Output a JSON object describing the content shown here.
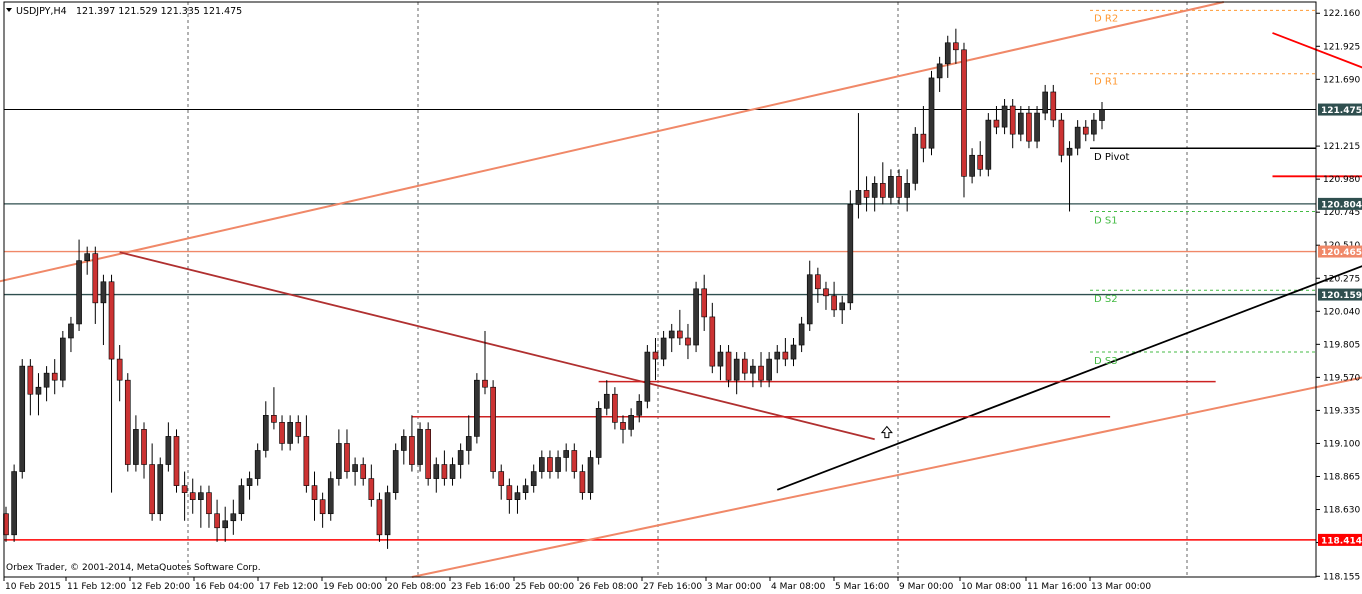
{
  "header": {
    "symbol": "USDJPY,H4",
    "ohlc": "121.397 121.529 121.335 121.475"
  },
  "footer": {
    "copyright": "Orbex Trader, © 2001-2014, MetaQuotes Software Corp."
  },
  "colors": {
    "bull": "#333333",
    "bear": "#cc3333",
    "support": "#ff0000",
    "dark_level": "#2f4f4f",
    "salmon": "#f08868",
    "resistance_pivot": "#ff9933",
    "support_pivot": "#44bb44"
  },
  "chart_data": {
    "type": "candlestick",
    "ylim": [
      118.15,
      122.24
    ],
    "x_tick_labels": [
      "10 Feb 2015",
      "11 Feb 12:00",
      "12 Feb 20:00",
      "16 Feb 04:00",
      "17 Feb 12:00",
      "19 Feb 00:00",
      "20 Feb 08:00",
      "23 Feb 16:00",
      "25 Feb 00:00",
      "26 Feb 08:00",
      "27 Feb 16:00",
      "3 Mar 00:00",
      "4 Mar 08:00",
      "5 Mar 16:00",
      "9 Mar 00:00",
      "10 Mar 08:00",
      "11 Mar 16:00",
      "13 Mar 00:00"
    ],
    "y_ticks": [
      "122.160",
      "121.925",
      "121.690",
      "121.215",
      "120.980",
      "120.745",
      "120.510",
      "120.275",
      "120.040",
      "119.805",
      "119.570",
      "119.335",
      "119.100",
      "118.865",
      "118.630",
      "118.395",
      "118.155"
    ],
    "price_tags": [
      {
        "value": "121.475",
        "style": "dark"
      },
      {
        "value": "120.804",
        "style": "dark"
      },
      {
        "value": "120.465",
        "style": "salmon"
      },
      {
        "value": "120.159",
        "style": "dark"
      },
      {
        "value": "118.414",
        "style": "red"
      }
    ],
    "pivot_levels": [
      {
        "label": "D R2",
        "value": 122.18,
        "kind": "resistance"
      },
      {
        "label": "D R1",
        "value": 121.73,
        "kind": "resistance"
      },
      {
        "label": "D Pivot",
        "value": 121.2,
        "kind": "pivot"
      },
      {
        "label": "D S1",
        "value": 120.75,
        "kind": "support"
      },
      {
        "label": "D S2",
        "value": 120.19,
        "kind": "support"
      },
      {
        "label": "D S3",
        "value": 119.75,
        "kind": "support"
      }
    ],
    "candles": [
      [
        118.6,
        118.65,
        118.4,
        118.45
      ],
      [
        118.45,
        118.95,
        118.4,
        118.9
      ],
      [
        118.9,
        119.7,
        118.85,
        119.65
      ],
      [
        119.65,
        119.7,
        119.3,
        119.45
      ],
      [
        119.45,
        119.6,
        119.3,
        119.5
      ],
      [
        119.5,
        119.65,
        119.4,
        119.6
      ],
      [
        119.6,
        119.7,
        119.45,
        119.55
      ],
      [
        119.55,
        119.9,
        119.5,
        119.85
      ],
      [
        119.85,
        120.0,
        119.75,
        119.95
      ],
      [
        119.95,
        120.55,
        119.9,
        120.4
      ],
      [
        120.4,
        120.5,
        120.3,
        120.45
      ],
      [
        120.45,
        120.5,
        119.95,
        120.1
      ],
      [
        120.1,
        120.3,
        119.8,
        120.25
      ],
      [
        120.25,
        120.3,
        118.75,
        119.7
      ],
      [
        119.7,
        119.8,
        119.4,
        119.55
      ],
      [
        119.55,
        119.6,
        118.9,
        118.95
      ],
      [
        118.95,
        119.3,
        118.9,
        119.2
      ],
      [
        119.2,
        119.25,
        118.85,
        118.95
      ],
      [
        118.95,
        119.1,
        118.55,
        118.6
      ],
      [
        118.6,
        119.0,
        118.55,
        118.95
      ],
      [
        118.95,
        119.25,
        118.9,
        119.15
      ],
      [
        119.15,
        119.2,
        118.75,
        118.8
      ],
      [
        118.8,
        118.9,
        118.55,
        118.75
      ],
      [
        118.75,
        118.85,
        118.6,
        118.7
      ],
      [
        118.7,
        118.8,
        118.5,
        118.75
      ],
      [
        118.75,
        118.8,
        118.5,
        118.6
      ],
      [
        118.6,
        118.7,
        118.4,
        118.5
      ],
      [
        118.5,
        118.65,
        118.4,
        118.55
      ],
      [
        118.55,
        118.7,
        118.45,
        118.6
      ],
      [
        118.6,
        118.85,
        118.55,
        118.8
      ],
      [
        118.8,
        118.9,
        118.7,
        118.85
      ],
      [
        118.85,
        119.1,
        118.8,
        119.05
      ],
      [
        119.05,
        119.4,
        119.0,
        119.3
      ],
      [
        119.3,
        119.5,
        119.2,
        119.25
      ],
      [
        119.25,
        119.3,
        119.05,
        119.1
      ],
      [
        119.1,
        119.3,
        119.05,
        119.25
      ],
      [
        119.25,
        119.3,
        119.1,
        119.15
      ],
      [
        119.15,
        119.3,
        118.75,
        118.8
      ],
      [
        118.8,
        118.9,
        118.55,
        118.7
      ],
      [
        118.7,
        118.75,
        118.5,
        118.6
      ],
      [
        118.6,
        118.9,
        118.55,
        118.85
      ],
      [
        118.85,
        119.2,
        118.8,
        119.1
      ],
      [
        119.1,
        119.2,
        118.85,
        118.9
      ],
      [
        118.9,
        119.0,
        118.8,
        118.95
      ],
      [
        118.95,
        119.0,
        118.8,
        118.85
      ],
      [
        118.85,
        118.95,
        118.65,
        118.7
      ],
      [
        118.7,
        118.75,
        118.4,
        118.45
      ],
      [
        118.45,
        118.8,
        118.35,
        118.75
      ],
      [
        118.75,
        119.1,
        118.7,
        119.05
      ],
      [
        119.05,
        119.2,
        118.95,
        119.15
      ],
      [
        119.15,
        119.3,
        118.9,
        118.95
      ],
      [
        118.95,
        119.25,
        118.9,
        119.2
      ],
      [
        119.2,
        119.25,
        118.8,
        118.85
      ],
      [
        118.85,
        119.0,
        118.75,
        118.95
      ],
      [
        118.95,
        119.05,
        118.8,
        118.85
      ],
      [
        118.85,
        119.0,
        118.8,
        118.95
      ],
      [
        118.95,
        119.1,
        118.85,
        119.05
      ],
      [
        119.05,
        119.3,
        118.95,
        119.15
      ],
      [
        119.15,
        119.6,
        119.1,
        119.55
      ],
      [
        119.55,
        119.9,
        119.45,
        119.5
      ],
      [
        119.5,
        119.55,
        118.85,
        118.9
      ],
      [
        118.9,
        118.95,
        118.7,
        118.8
      ],
      [
        118.8,
        118.85,
        118.6,
        118.7
      ],
      [
        118.7,
        118.8,
        118.6,
        118.75
      ],
      [
        118.75,
        118.85,
        118.7,
        118.8
      ],
      [
        118.8,
        118.95,
        118.75,
        118.9
      ],
      [
        118.9,
        119.05,
        118.85,
        119.0
      ],
      [
        119.0,
        119.05,
        118.85,
        118.9
      ],
      [
        118.9,
        119.05,
        118.85,
        119.0
      ],
      [
        119.0,
        119.1,
        118.9,
        119.05
      ],
      [
        119.05,
        119.1,
        118.85,
        118.9
      ],
      [
        118.9,
        118.95,
        118.7,
        118.75
      ],
      [
        118.75,
        119.05,
        118.7,
        119.0
      ],
      [
        119.0,
        119.4,
        118.95,
        119.35
      ],
      [
        119.35,
        119.55,
        119.3,
        119.45
      ],
      [
        119.45,
        119.5,
        119.2,
        119.25
      ],
      [
        119.25,
        119.3,
        119.1,
        119.2
      ],
      [
        119.2,
        119.35,
        119.15,
        119.3
      ],
      [
        119.3,
        119.45,
        119.25,
        119.4
      ],
      [
        119.4,
        119.8,
        119.35,
        119.75
      ],
      [
        119.75,
        119.85,
        119.55,
        119.7
      ],
      [
        119.7,
        119.9,
        119.65,
        119.85
      ],
      [
        119.85,
        119.95,
        119.75,
        119.9
      ],
      [
        119.9,
        120.05,
        119.8,
        119.85
      ],
      [
        119.85,
        119.95,
        119.7,
        119.8
      ],
      [
        119.8,
        120.25,
        119.75,
        120.2
      ],
      [
        120.2,
        120.3,
        119.9,
        120.0
      ],
      [
        120.0,
        120.1,
        119.6,
        119.65
      ],
      [
        119.65,
        119.8,
        119.55,
        119.75
      ],
      [
        119.75,
        119.8,
        119.5,
        119.55
      ],
      [
        119.55,
        119.75,
        119.45,
        119.7
      ],
      [
        119.7,
        119.75,
        119.55,
        119.6
      ],
      [
        119.6,
        119.7,
        119.5,
        119.65
      ],
      [
        119.65,
        119.75,
        119.5,
        119.55
      ],
      [
        119.55,
        119.75,
        119.5,
        119.7
      ],
      [
        119.7,
        119.8,
        119.6,
        119.75
      ],
      [
        119.75,
        119.85,
        119.65,
        119.7
      ],
      [
        119.7,
        119.85,
        119.65,
        119.8
      ],
      [
        119.8,
        120.0,
        119.75,
        119.95
      ],
      [
        119.95,
        120.4,
        119.9,
        120.3
      ],
      [
        120.3,
        120.35,
        120.1,
        120.2
      ],
      [
        120.2,
        120.25,
        120.05,
        120.15
      ],
      [
        120.15,
        120.25,
        120.0,
        120.05
      ],
      [
        120.05,
        120.15,
        119.95,
        120.1
      ],
      [
        120.1,
        120.9,
        120.05,
        120.8
      ],
      [
        120.8,
        121.45,
        120.7,
        120.9
      ],
      [
        120.9,
        121.0,
        120.75,
        120.85
      ],
      [
        120.85,
        121.0,
        120.75,
        120.95
      ],
      [
        120.95,
        121.1,
        120.8,
        120.85
      ],
      [
        120.85,
        121.05,
        120.8,
        121.0
      ],
      [
        121.0,
        121.05,
        120.8,
        120.85
      ],
      [
        120.85,
        121.05,
        120.75,
        120.95
      ],
      [
        120.95,
        121.35,
        120.9,
        121.3
      ],
      [
        121.3,
        121.5,
        121.1,
        121.2
      ],
      [
        121.2,
        121.75,
        121.15,
        121.7
      ],
      [
        121.7,
        121.85,
        121.6,
        121.8
      ],
      [
        121.8,
        122.0,
        121.7,
        121.95
      ],
      [
        121.95,
        122.05,
        121.8,
        121.9
      ],
      [
        121.9,
        121.95,
        120.85,
        121.0
      ],
      [
        121.0,
        121.2,
        120.95,
        121.15
      ],
      [
        121.15,
        121.25,
        121.0,
        121.05
      ],
      [
        121.05,
        121.45,
        121.0,
        121.4
      ],
      [
        121.4,
        121.5,
        121.3,
        121.35
      ],
      [
        121.35,
        121.55,
        121.3,
        121.5
      ],
      [
        121.5,
        121.55,
        121.2,
        121.3
      ],
      [
        121.3,
        121.5,
        121.25,
        121.45
      ],
      [
        121.45,
        121.5,
        121.2,
        121.25
      ],
      [
        121.25,
        121.5,
        121.2,
        121.45
      ],
      [
        121.45,
        121.65,
        121.4,
        121.6
      ],
      [
        121.6,
        121.65,
        121.35,
        121.4
      ],
      [
        121.4,
        121.45,
        121.1,
        121.15
      ],
      [
        121.15,
        121.25,
        120.75,
        121.2
      ],
      [
        121.2,
        121.4,
        121.15,
        121.35
      ],
      [
        121.35,
        121.4,
        121.25,
        121.3
      ],
      [
        121.3,
        121.45,
        121.25,
        121.4
      ],
      [
        121.397,
        121.529,
        121.335,
        121.475
      ]
    ]
  }
}
